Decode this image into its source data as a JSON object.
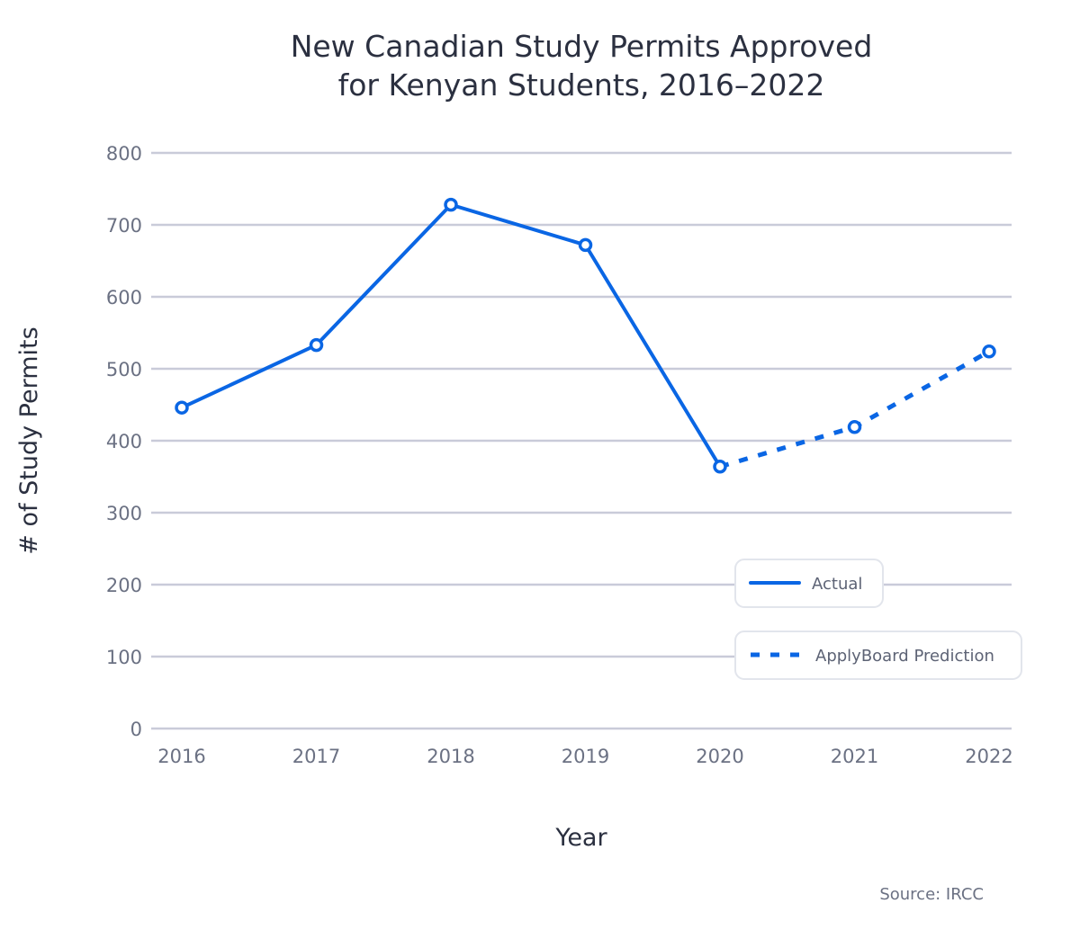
{
  "chart_data": {
    "type": "line",
    "title_lines": [
      "New Canadian Study Permits Approved",
      "for Kenyan Students,  2016–2022"
    ],
    "xlabel": "Year",
    "ylabel": "# of Study Permits",
    "source": "Source: IRCC",
    "categories": [
      "2016",
      "2017",
      "2018",
      "2019",
      "2020",
      "2021",
      "2022"
    ],
    "ylim": [
      0,
      800
    ],
    "yticks": [
      0,
      100,
      200,
      300,
      400,
      500,
      600,
      700,
      800
    ],
    "grid": true,
    "legend_placement": "bottom-right",
    "series": [
      {
        "name": "Actual",
        "style": "solid",
        "color": "#0a66e4",
        "x": [
          "2016",
          "2017",
          "2018",
          "2019",
          "2020"
        ],
        "values": [
          446,
          533,
          728,
          672,
          364
        ]
      },
      {
        "name": "ApplyBoard Prediction",
        "style": "dashed",
        "color": "#0a66e4",
        "x": [
          "2020",
          "2021",
          "2022"
        ],
        "values": [
          364,
          419,
          524
        ]
      }
    ]
  }
}
